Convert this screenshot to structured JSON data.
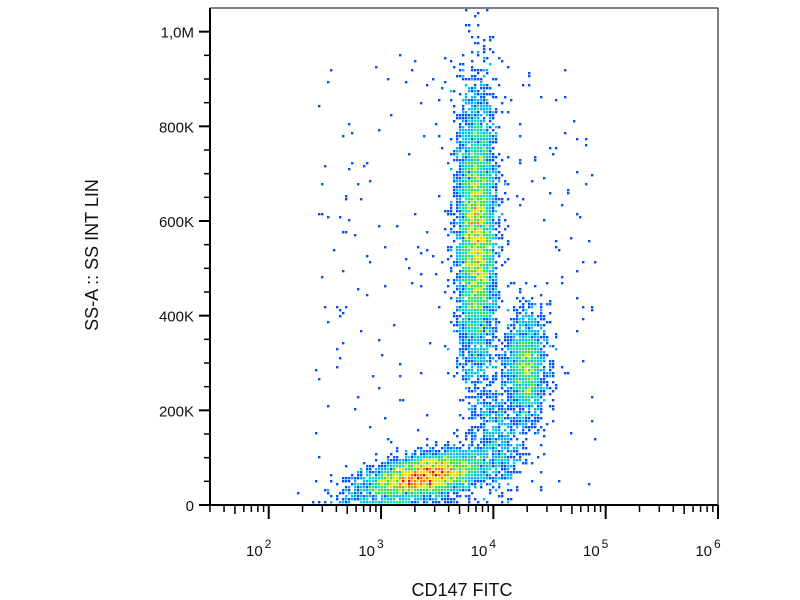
{
  "chart_data": {
    "type": "scatter",
    "subtype": "flow-cytometry-density-dot-plot",
    "xlabel": "CD147 FITC",
    "ylabel": "SS-A :: SS INT LIN",
    "x_scale": "log",
    "xlim": [
      30,
      1000000
    ],
    "ylim": [
      0,
      1050000
    ],
    "x_ticks": [
      {
        "value": 100,
        "base": "10",
        "exp": "2"
      },
      {
        "value": 1000,
        "base": "10",
        "exp": "3"
      },
      {
        "value": 10000,
        "base": "10",
        "exp": "4"
      },
      {
        "value": 100000,
        "base": "10",
        "exp": "5"
      },
      {
        "value": 1000000,
        "base": "10",
        "exp": "6"
      }
    ],
    "y_ticks": [
      {
        "value": 0,
        "label": "0"
      },
      {
        "value": 200000,
        "label": "200K"
      },
      {
        "value": 400000,
        "label": "400K"
      },
      {
        "value": 600000,
        "label": "600K"
      },
      {
        "value": 800000,
        "label": "800K"
      },
      {
        "value": 1000000,
        "label": "1,0M"
      }
    ],
    "populations": [
      {
        "x_center": 2500,
        "y_center": 60000,
        "x_spread_log10": 0.28,
        "y_spread": 22000,
        "tilt": 0.55,
        "events": 4200
      },
      {
        "x_center": 7200,
        "y_center": 570000,
        "x_spread_log10": 0.085,
        "y_spread": 150000,
        "tilt": 0.0,
        "events": 5200
      },
      {
        "x_center": 20000,
        "y_center": 290000,
        "x_spread_log10": 0.09,
        "y_spread": 60000,
        "tilt": 0.0,
        "events": 1500
      },
      {
        "x_center": 11000,
        "y_center": 140000,
        "x_spread_log10": 0.1,
        "y_spread": 60000,
        "tilt": 0.0,
        "events": 500
      }
    ],
    "density_colormap": [
      "#0000c8",
      "#0050ff",
      "#00b4ff",
      "#00e6b4",
      "#3cdc3c",
      "#c8f000",
      "#ffd200",
      "#ff6e00",
      "#e60000"
    ],
    "grid": false,
    "legend": "none"
  }
}
